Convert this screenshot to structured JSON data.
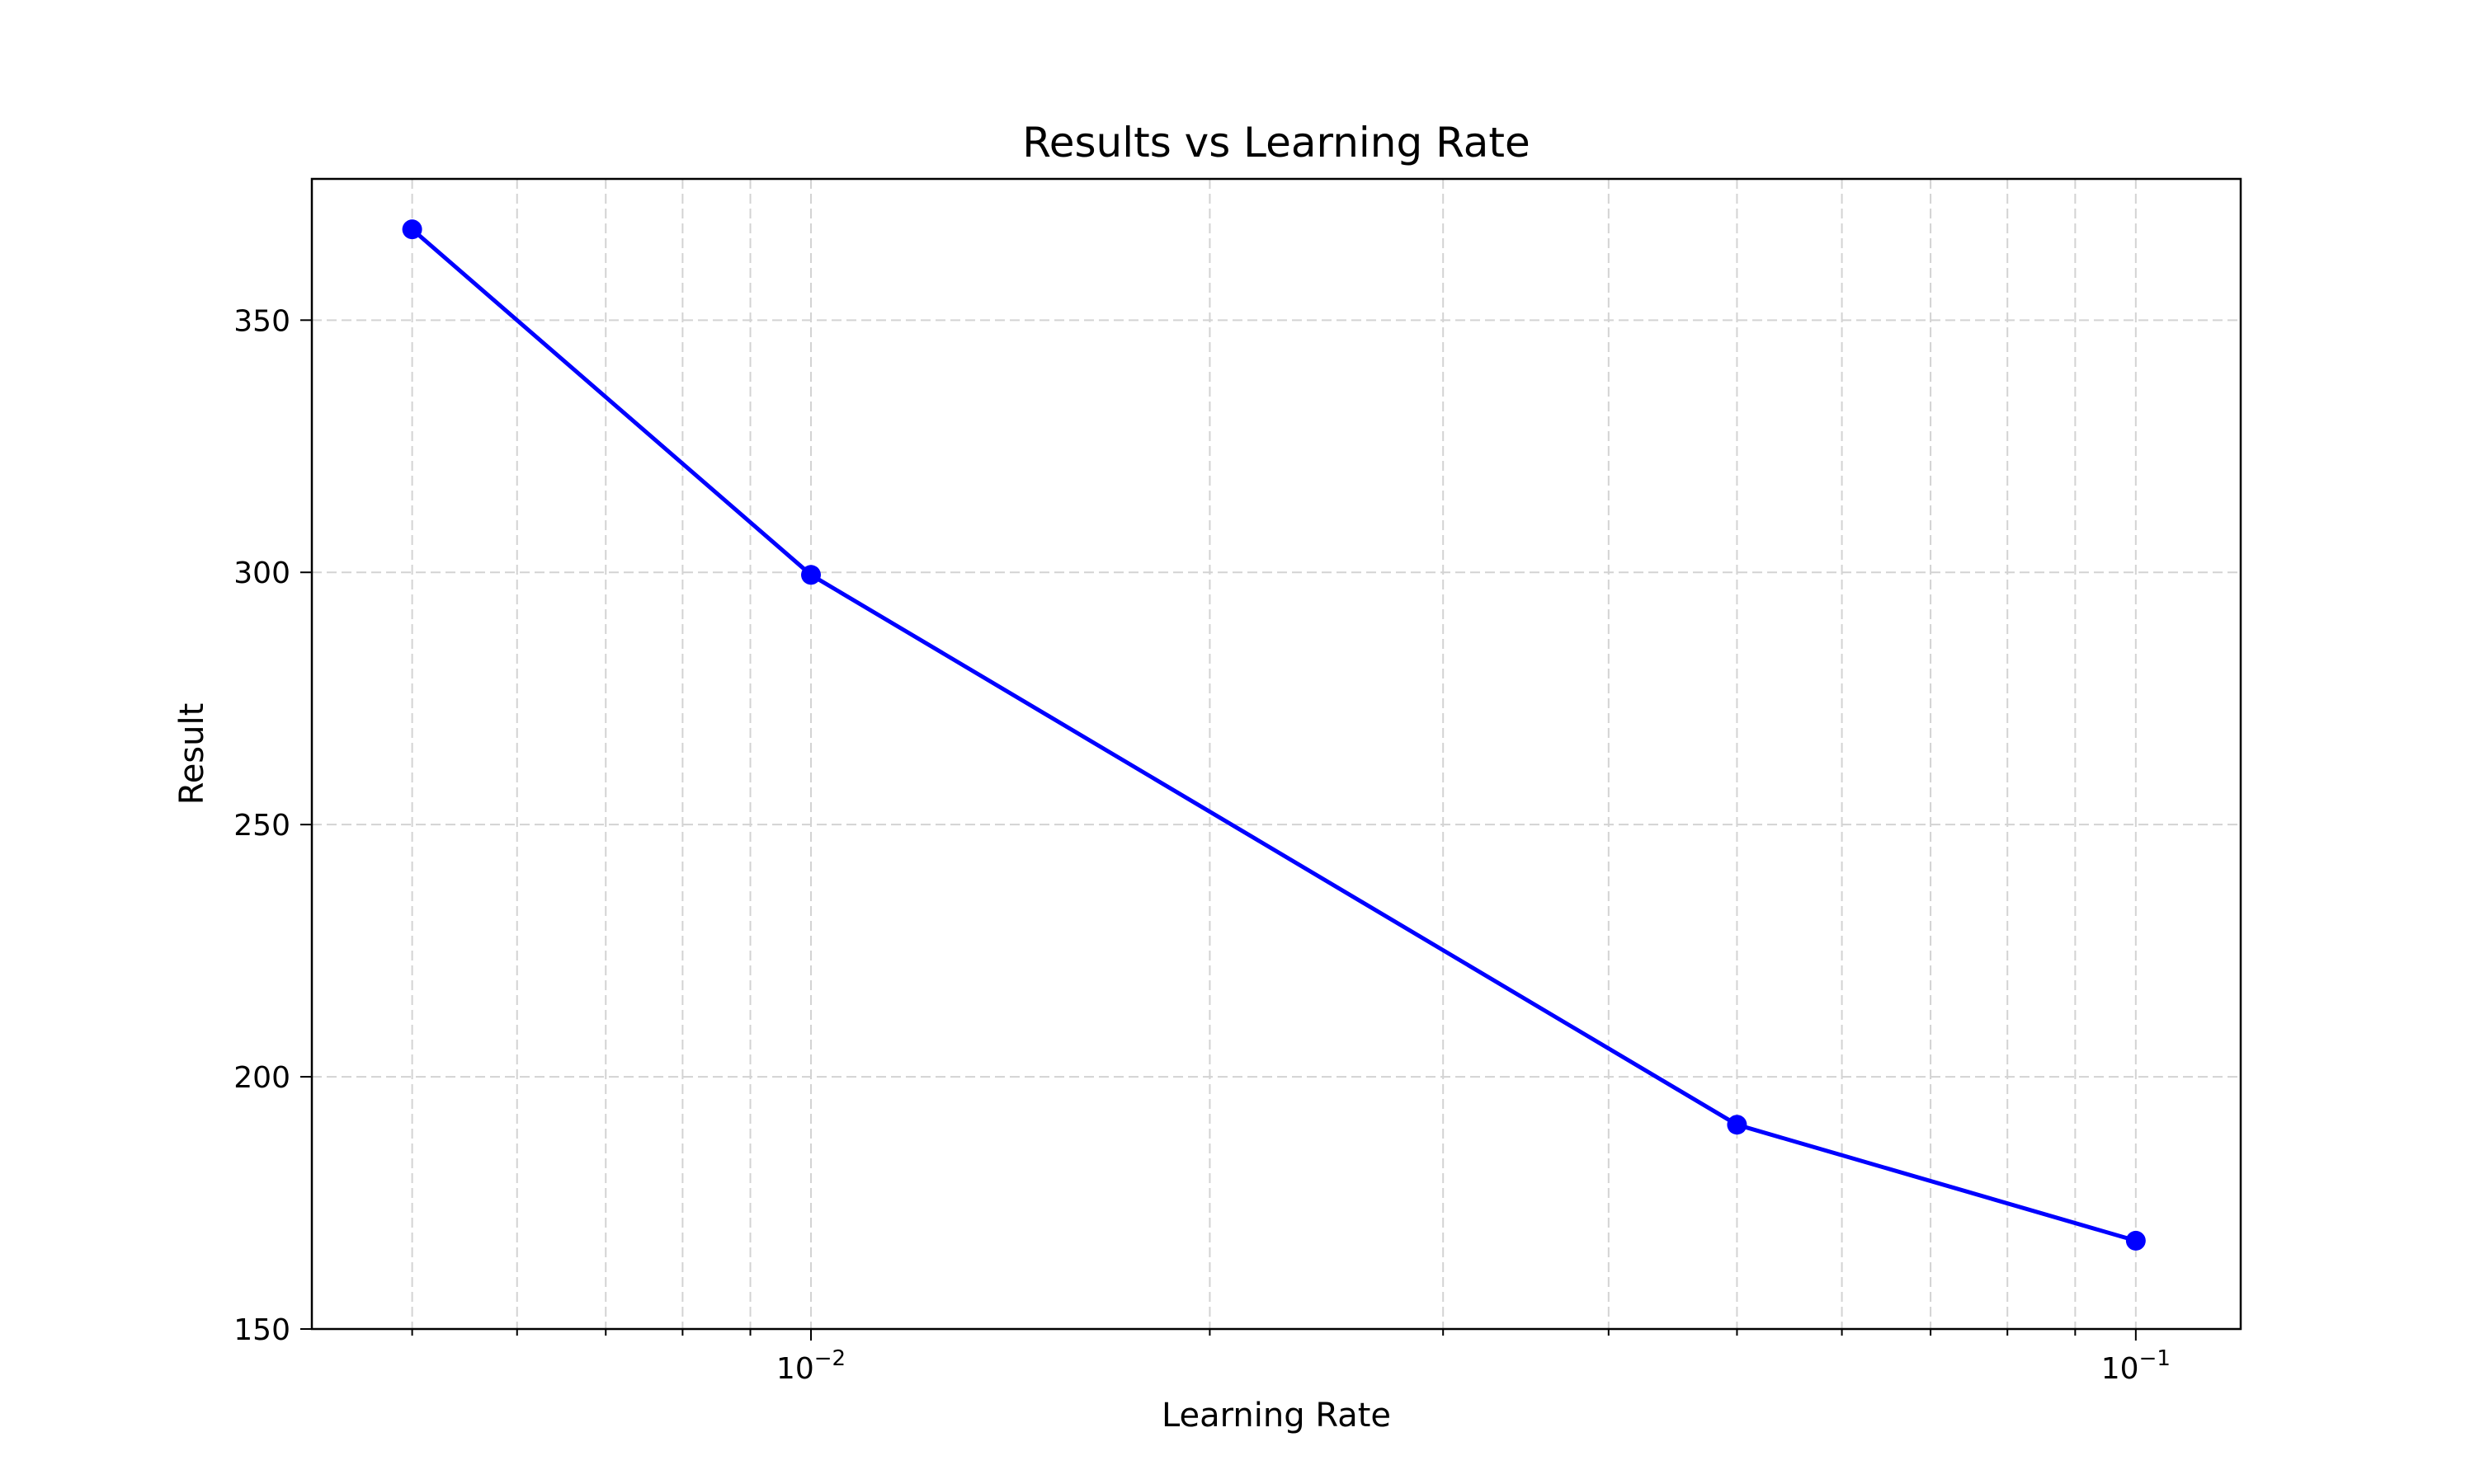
{
  "chart_data": {
    "type": "line",
    "title": "Results vs Learning Rate",
    "xlabel": "Learning Rate",
    "ylabel": "Result",
    "x_scale": "log",
    "xlim": [
      0.0042,
      0.12
    ],
    "ylim": [
      150,
      378
    ],
    "grid": true,
    "x_ticks": [
      {
        "value": 0.01,
        "base": "10",
        "exp": "−2"
      },
      {
        "value": 0.1,
        "base": "10",
        "exp": "−1"
      }
    ],
    "y_ticks": [
      150,
      200,
      250,
      300,
      350
    ],
    "series": [
      {
        "color": "#0000ff",
        "marker": "circle",
        "x": [
          0.005,
          0.01,
          0.05,
          0.1
        ],
        "y": [
          368,
          299.5,
          190.5,
          167.5
        ]
      }
    ]
  }
}
